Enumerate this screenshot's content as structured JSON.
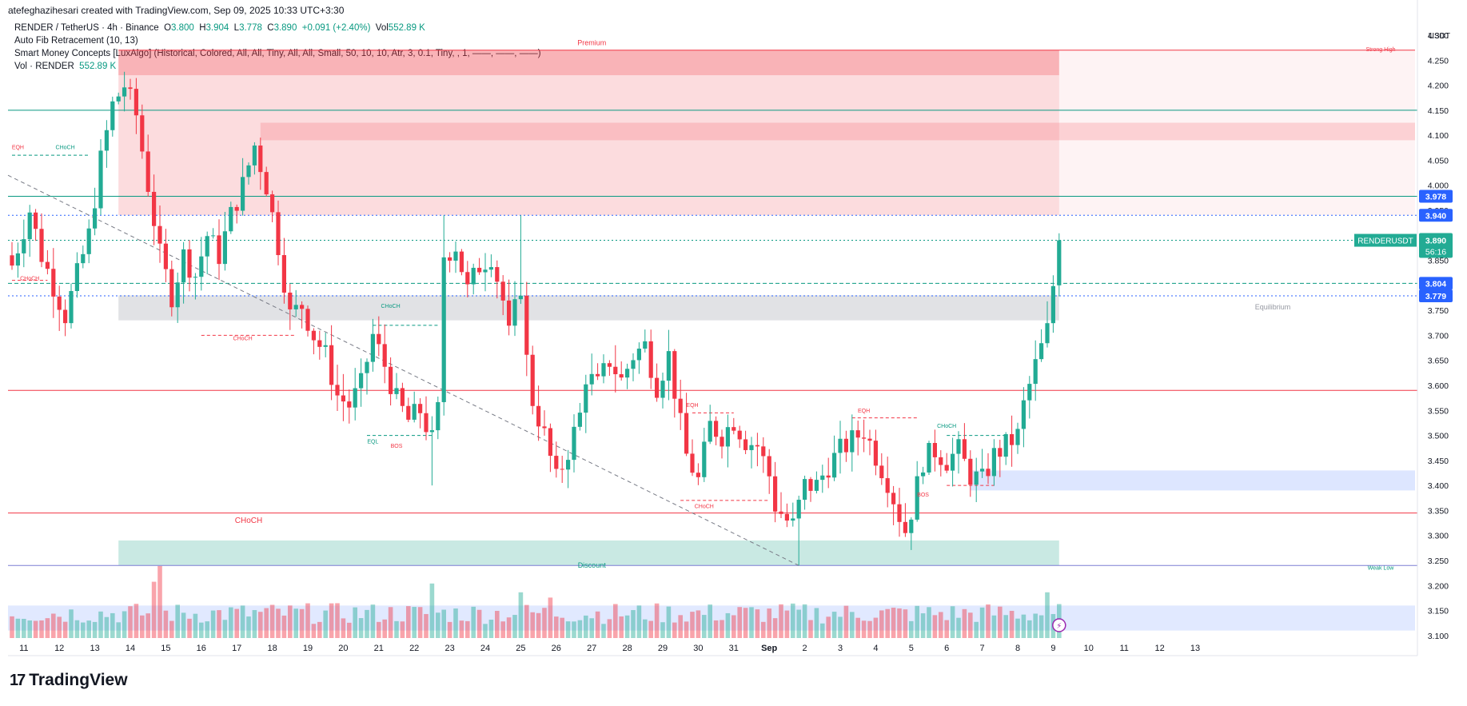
{
  "header": {
    "credit": "atefeghazihesari created with TradingView.com, Sep 09, 2025 10:33 UTC+3:30"
  },
  "legend": {
    "symbol": "RENDER / TetherUS · 4h · Binance",
    "o_label": "O",
    "o": "3.800",
    "h_label": "H",
    "h": "3.904",
    "l_label": "L",
    "l": "3.778",
    "c_label": "C",
    "c": "3.890",
    "change": "+0.091 (+2.40%)",
    "vol_label": "Vol",
    "vol": "552.89 K",
    "fib": "Auto Fib Retracement (10, 13)",
    "smc": "Smart Money Concepts [LuxAlgo] (Historical, Colored, All, All, Tiny, All, All, Small, 50, 10, 10, Atr, 3, 0.1, Tiny, , 1, ——, ——, ——)",
    "vol_line_label": "Vol · RENDER",
    "vol_line_value": "552.89 K"
  },
  "brand": {
    "logo_mark": "17",
    "name": "TradingView"
  },
  "colors": {
    "up": "#22ab94",
    "down": "#f23645",
    "premium": "#f23645",
    "discount": "#089981",
    "equilibrium": "#9598a1",
    "blue": "#2962ff"
  },
  "chart_data": {
    "type": "candlestick",
    "symbol": "RENDERUSDT",
    "timeframe": "4h",
    "currency": "USDT",
    "ylim": [
      3.095,
      4.3
    ],
    "y_ticks": [
      "3.100",
      "3.150",
      "3.200",
      "3.250",
      "3.300",
      "3.350",
      "3.400",
      "3.450",
      "3.500",
      "3.550",
      "3.600",
      "3.650",
      "3.700",
      "3.750",
      "3.800",
      "3.850",
      "3.900",
      "3.950",
      "4.000",
      "4.050",
      "4.100",
      "4.150",
      "4.200",
      "4.250",
      "4.300"
    ],
    "x_ticks": [
      {
        "label": "11",
        "i": 2
      },
      {
        "label": "12",
        "i": 8
      },
      {
        "label": "13",
        "i": 14
      },
      {
        "label": "14",
        "i": 20
      },
      {
        "label": "15",
        "i": 26
      },
      {
        "label": "16",
        "i": 32
      },
      {
        "label": "17",
        "i": 38
      },
      {
        "label": "18",
        "i": 44
      },
      {
        "label": "19",
        "i": 50
      },
      {
        "label": "20",
        "i": 56
      },
      {
        "label": "21",
        "i": 62
      },
      {
        "label": "22",
        "i": 68
      },
      {
        "label": "23",
        "i": 74
      },
      {
        "label": "24",
        "i": 80
      },
      {
        "label": "25",
        "i": 86
      },
      {
        "label": "26",
        "i": 92
      },
      {
        "label": "27",
        "i": 98
      },
      {
        "label": "28",
        "i": 104
      },
      {
        "label": "29",
        "i": 110
      },
      {
        "label": "30",
        "i": 116
      },
      {
        "label": "31",
        "i": 122
      },
      {
        "label": "Sep",
        "i": 128
      },
      {
        "label": "2",
        "i": 134
      },
      {
        "label": "3",
        "i": 140
      },
      {
        "label": "4",
        "i": 146
      },
      {
        "label": "5",
        "i": 152
      },
      {
        "label": "6",
        "i": 158
      },
      {
        "label": "7",
        "i": 164
      },
      {
        "label": "8",
        "i": 170
      },
      {
        "label": "9",
        "i": 176
      },
      {
        "label": "10",
        "i": 182
      },
      {
        "label": "11",
        "i": 188
      },
      {
        "label": "12",
        "i": 194
      },
      {
        "label": "13",
        "i": 200
      }
    ],
    "close_anchors": [
      [
        0,
        3.84
      ],
      [
        3,
        3.95
      ],
      [
        5,
        3.86
      ],
      [
        7,
        3.8
      ],
      [
        9,
        3.74
      ],
      [
        11,
        3.82
      ],
      [
        13,
        3.9
      ],
      [
        15,
        4.05
      ],
      [
        17,
        4.16
      ],
      [
        19,
        4.2
      ],
      [
        21,
        4.14
      ],
      [
        23,
        4.0
      ],
      [
        25,
        3.86
      ],
      [
        27,
        3.78
      ],
      [
        29,
        3.86
      ],
      [
        31,
        3.82
      ],
      [
        33,
        3.9
      ],
      [
        35,
        3.86
      ],
      [
        37,
        3.94
      ],
      [
        39,
        4.0
      ],
      [
        41,
        4.08
      ],
      [
        43,
        4.0
      ],
      [
        45,
        3.88
      ],
      [
        47,
        3.74
      ],
      [
        49,
        3.76
      ],
      [
        51,
        3.7
      ],
      [
        53,
        3.66
      ],
      [
        55,
        3.58
      ],
      [
        57,
        3.56
      ],
      [
        59,
        3.6
      ],
      [
        61,
        3.7
      ],
      [
        63,
        3.64
      ],
      [
        65,
        3.57
      ],
      [
        67,
        3.53
      ],
      [
        69,
        3.55
      ],
      [
        71,
        3.49
      ],
      [
        72,
        3.55
      ],
      [
        73,
        3.86
      ],
      [
        75,
        3.88
      ],
      [
        77,
        3.79
      ],
      [
        79,
        3.84
      ],
      [
        81,
        3.86
      ],
      [
        83,
        3.77
      ],
      [
        84,
        3.7
      ],
      [
        86,
        3.8
      ],
      [
        87,
        3.65
      ],
      [
        88,
        3.57
      ],
      [
        90,
        3.5
      ],
      [
        92,
        3.41
      ],
      [
        94,
        3.47
      ],
      [
        96,
        3.54
      ],
      [
        97,
        3.62
      ],
      [
        99,
        3.6
      ],
      [
        101,
        3.65
      ],
      [
        103,
        3.61
      ],
      [
        105,
        3.66
      ],
      [
        107,
        3.68
      ],
      [
        109,
        3.6
      ],
      [
        111,
        3.66
      ],
      [
        113,
        3.52
      ],
      [
        114,
        3.46
      ],
      [
        116,
        3.41
      ],
      [
        118,
        3.52
      ],
      [
        120,
        3.5
      ],
      [
        122,
        3.53
      ],
      [
        124,
        3.49
      ],
      [
        126,
        3.48
      ],
      [
        128,
        3.42
      ],
      [
        129,
        3.36
      ],
      [
        131,
        3.33
      ],
      [
        132,
        3.32
      ],
      [
        134,
        3.4
      ],
      [
        136,
        3.4
      ],
      [
        138,
        3.44
      ],
      [
        140,
        3.47
      ],
      [
        142,
        3.49
      ],
      [
        144,
        3.51
      ],
      [
        146,
        3.46
      ],
      [
        148,
        3.41
      ],
      [
        150,
        3.34
      ],
      [
        151,
        3.31
      ],
      [
        152,
        3.35
      ],
      [
        154,
        3.45
      ],
      [
        156,
        3.47
      ],
      [
        158,
        3.45
      ],
      [
        160,
        3.47
      ],
      [
        162,
        3.42
      ],
      [
        164,
        3.41
      ],
      [
        166,
        3.46
      ],
      [
        168,
        3.48
      ],
      [
        170,
        3.5
      ],
      [
        171,
        3.56
      ],
      [
        173,
        3.64
      ],
      [
        175,
        3.71
      ],
      [
        176,
        3.8
      ],
      [
        177,
        3.89
      ]
    ],
    "volume_spikes": [
      [
        24,
        3.2
      ],
      [
        25,
        4.1
      ],
      [
        71,
        3.1
      ],
      [
        86,
        2.6
      ],
      [
        91,
        2.3
      ],
      [
        175,
        2.6
      ]
    ],
    "horizontal_levels": [
      {
        "price": 4.15,
        "style": "solid",
        "color": "#089981"
      },
      {
        "price": 3.978,
        "style": "solid",
        "color": "#089981",
        "label": "3.978"
      },
      {
        "price": 3.94,
        "style": "dotted",
        "color": "#2962ff",
        "label": "3.940"
      },
      {
        "price": 3.89,
        "style": "dotted",
        "color": "#089981"
      },
      {
        "price": 3.804,
        "style": "dashed",
        "color": "#089981",
        "label": "3.804"
      },
      {
        "price": 3.779,
        "style": "dotted",
        "color": "#2962ff",
        "label": "3.779"
      },
      {
        "price": 3.59,
        "style": "solid",
        "color": "#f23645"
      },
      {
        "price": 3.345,
        "style": "solid",
        "color": "#f23645"
      },
      {
        "price": 3.24,
        "style": "solid",
        "color": "#7b7fd4"
      }
    ],
    "price_label": {
      "name": "RENDERUSDT",
      "price": "3.890",
      "countdown": "56:16"
    },
    "zones": {
      "premium": {
        "label": "Premium",
        "from": 3.94,
        "to": 4.27
      },
      "equilibrium": {
        "label": "Equilibrium",
        "from": 3.73,
        "to": 3.78
      },
      "discount": {
        "label": "Discount",
        "from": 3.24,
        "to": 3.29
      },
      "strong_high": "Strong High",
      "weak_low": "Weak Low"
    },
    "annotations": [
      {
        "text": "EQH",
        "i": 1,
        "y": 4.072,
        "color": "#f23645"
      },
      {
        "text": "CHoCH",
        "i": 9,
        "y": 4.072,
        "color": "#089981"
      },
      {
        "text": "CHoCH",
        "i": 3,
        "y": 3.81,
        "color": "#f23645"
      },
      {
        "text": "CHoCH",
        "i": 39,
        "y": 3.69,
        "color": "#f23645"
      },
      {
        "text": "CHoCH",
        "i": 64,
        "y": 3.755,
        "color": "#089981"
      },
      {
        "text": "EQL",
        "i": 61,
        "y": 3.484,
        "color": "#089981"
      },
      {
        "text": "BOS",
        "i": 65,
        "y": 3.475,
        "color": "#f23645"
      },
      {
        "text": "CHoCH",
        "i": 40,
        "y": 3.325,
        "color": "#f23645",
        "big": true
      },
      {
        "text": "EQH",
        "i": 115,
        "y": 3.557,
        "color": "#f23645"
      },
      {
        "text": "CHoCH",
        "i": 117,
        "y": 3.355,
        "color": "#f23645"
      },
      {
        "text": "EQH",
        "i": 144,
        "y": 3.546,
        "color": "#f23645"
      },
      {
        "text": "CHoCH",
        "i": 158,
        "y": 3.515,
        "color": "#089981"
      },
      {
        "text": "BOS",
        "i": 154,
        "y": 3.378,
        "color": "#f23645"
      }
    ]
  }
}
